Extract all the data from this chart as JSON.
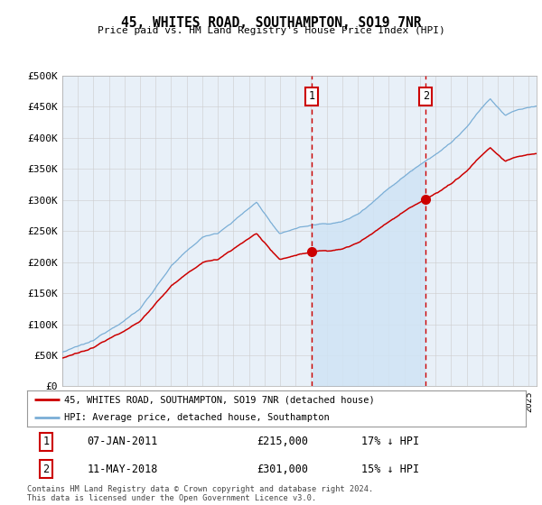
{
  "title": "45, WHITES ROAD, SOUTHAMPTON, SO19 7NR",
  "subtitle": "Price paid vs. HM Land Registry's House Price Index (HPI)",
  "hpi_color": "#7aaed6",
  "hpi_fill_color": "#d0e4f5",
  "price_color": "#cc0000",
  "marker1_date": 2011.04,
  "marker2_date": 2018.37,
  "marker1_price": 215000,
  "marker2_price": 301000,
  "legend_line1": "45, WHITES ROAD, SOUTHAMPTON, SO19 7NR (detached house)",
  "legend_line2": "HPI: Average price, detached house, Southampton",
  "footer": "Contains HM Land Registry data © Crown copyright and database right 2024.\nThis data is licensed under the Open Government Licence v3.0.",
  "background_color": "#e8f0f8",
  "plot_bg": "#ffffff",
  "xmin": 1995,
  "xmax": 2025.5,
  "ylim_max": 500000,
  "yticks": [
    0,
    50000,
    100000,
    150000,
    200000,
    250000,
    300000,
    350000,
    400000,
    450000,
    500000
  ],
  "ytick_labels": [
    "£0",
    "£50K",
    "£100K",
    "£150K",
    "£200K",
    "£250K",
    "£300K",
    "£350K",
    "£400K",
    "£450K",
    "£500K"
  ]
}
